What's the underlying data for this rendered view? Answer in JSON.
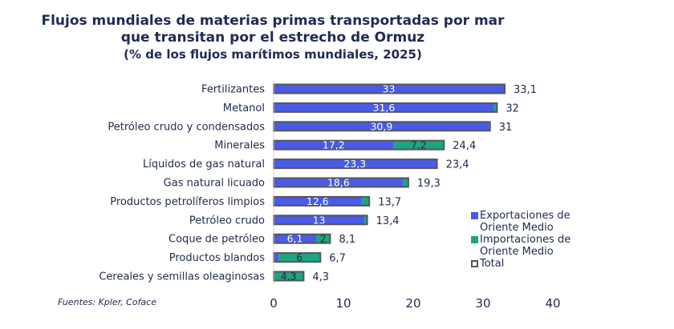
{
  "chart_data": {
    "type": "bar",
    "orientation": "horizontal",
    "stacked": true,
    "title": "Flujos mundiales de materias primas transportadas por mar que transitan por el estrecho de Ormuz",
    "title_lines": [
      "Flujos mundiales de materias primas transportadas por mar",
      "que transitan por el estrecho de Ormuz"
    ],
    "subtitle": "(% de los flujos marítimos mundiales, 2025)",
    "xlabel": "",
    "ylabel": "",
    "xlim": [
      0,
      40
    ],
    "xticks": [
      0,
      10,
      20,
      30,
      40
    ],
    "grid": false,
    "legend_position": "right",
    "categories": [
      "Fertilizantes",
      "Metanol",
      "Petróleo crudo y condensados",
      "Minerales",
      "Líquidos de gas natural",
      "Gas natural licuado",
      "Productos petrolíferos limpios",
      "Petróleo crudo",
      "Coque de petróleo",
      "Productos blandos",
      "Cereales y semillas oleaginosas"
    ],
    "series": [
      {
        "name": "Exportaciones de Oriente Medio",
        "color": "#4a5be6",
        "values": [
          33,
          31.6,
          30.9,
          17.2,
          23.3,
          18.6,
          12.6,
          13,
          6.1,
          0.7,
          0
        ],
        "labels": [
          "33",
          "31,6",
          "30,9",
          "17,2",
          "23,3",
          "18,6",
          "12,6",
          "13",
          "6,1",
          "",
          ""
        ]
      },
      {
        "name": "Importaciones de Oriente Medio",
        "color": "#1fa57e",
        "values": [
          0.1,
          0.4,
          0.1,
          7.2,
          0.1,
          0.7,
          1.1,
          0.4,
          2,
          6,
          4.3
        ],
        "labels": [
          "",
          "",
          "",
          "7,2",
          "",
          "",
          "",
          "",
          "2",
          "6",
          "4,3"
        ]
      },
      {
        "name": "Total",
        "color": "#555555",
        "values": [
          33.1,
          32,
          31,
          24.4,
          23.4,
          19.3,
          13.7,
          13.4,
          8.1,
          6.7,
          4.3
        ],
        "labels": [
          "33,1",
          "32",
          "31",
          "24,4",
          "23,4",
          "19,3",
          "13,7",
          "13,4",
          "8,1",
          "6,7",
          "4,3"
        ]
      }
    ],
    "legend": [
      {
        "label_lines": [
          "Exportaciones de",
          "Oriente Medio"
        ],
        "color": "#4a5be6",
        "style": "filled"
      },
      {
        "label_lines": [
          "Importaciones de",
          "Oriente Medio"
        ],
        "color": "#1fa57e",
        "style": "filled"
      },
      {
        "label_lines": [
          "Total"
        ],
        "color": "#555555",
        "style": "outline"
      }
    ],
    "source": "Fuentes: Kpler, Coface"
  }
}
